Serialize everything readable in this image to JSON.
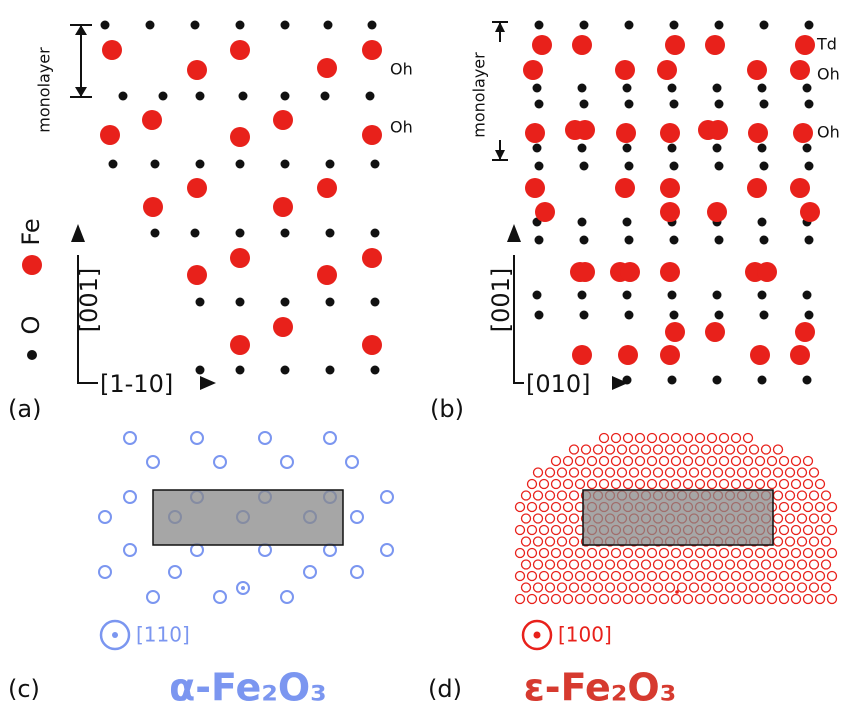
{
  "panel_a": {
    "label": "(a)",
    "monolayer": "monolayer",
    "site_1": "Oh",
    "site_2": "Oh",
    "legend_fe": "Fe",
    "legend_o": "O",
    "axis_vertical": "[001]",
    "axis_horizontal": "[1-10]"
  },
  "panel_b": {
    "label": "(b)",
    "monolayer": "monolayer",
    "site_1": "Td",
    "site_2": "Oh",
    "site_3": "Oh",
    "axis_vertical": "[001]",
    "axis_horizontal": "[010]"
  },
  "panel_c": {
    "label": "(c)",
    "direction": "[110]",
    "formula": "α-Fe₂O₃"
  },
  "panel_d": {
    "label": "(d)",
    "direction": "[100]",
    "formula": "ε-Fe₂O₃"
  }
}
